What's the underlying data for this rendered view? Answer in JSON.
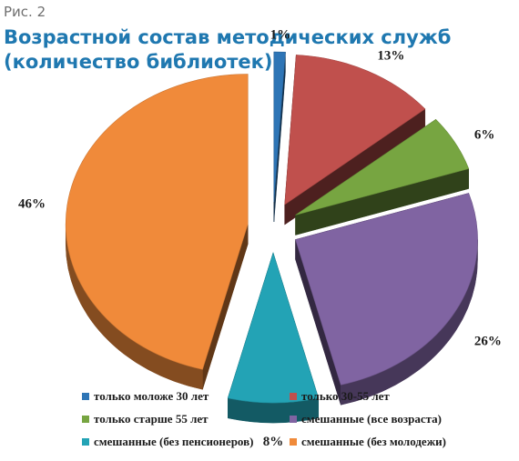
{
  "figure": {
    "label": "Рис. 2",
    "title_line1": "Возрастной состав методических служб",
    "title_line2": "(количество библиотек)"
  },
  "chart_data": {
    "type": "pie",
    "style": "3d-exploded",
    "title": "Возрастной состав методических служб (количество библиотек)",
    "legend_position": "bottom",
    "slices": [
      {
        "label": "только моложе 30 лет",
        "value": 1,
        "display": "1%",
        "color": "#2e75b6"
      },
      {
        "label": "только 30-55 лет",
        "value": 13,
        "display": "13%",
        "color": "#c0504d"
      },
      {
        "label": "только старше 55 лет",
        "value": 6,
        "display": "6%",
        "color": "#77a541"
      },
      {
        "label": "смешанные (все возраста)",
        "value": 26,
        "display": "26%",
        "color": "#8064a2"
      },
      {
        "label": "смешанные (без пенсионеров)",
        "value": 8,
        "display": "8%",
        "color": "#23a3b5"
      },
      {
        "label": "смешанные (без молодежи)",
        "value": 46,
        "display": "46%",
        "color": "#f08a3a"
      }
    ]
  }
}
